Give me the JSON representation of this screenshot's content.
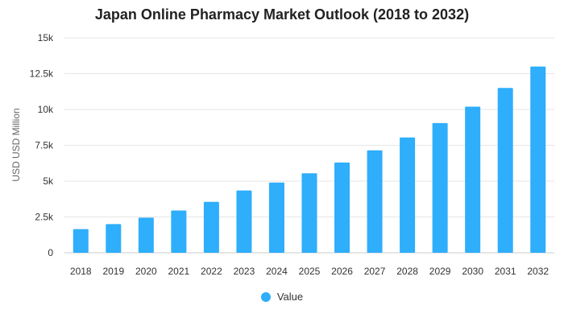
{
  "chart_data": {
    "type": "bar",
    "title": "Japan Online Pharmacy Market Outlook (2018 to 2032)",
    "ylabel": "USD USD Million",
    "xlabel": "",
    "categories": [
      "2018",
      "2019",
      "2020",
      "2021",
      "2022",
      "2023",
      "2024",
      "2025",
      "2026",
      "2027",
      "2028",
      "2029",
      "2030",
      "2031",
      "2032"
    ],
    "series": [
      {
        "name": "Value",
        "color": "#2eaefb",
        "values": [
          1650,
          2000,
          2450,
          2950,
          3550,
          4350,
          4900,
          5550,
          6300,
          7150,
          8050,
          9050,
          10200,
          11500,
          13000
        ]
      }
    ],
    "ylim": [
      0,
      15000
    ],
    "yticks": [
      0,
      2500,
      5000,
      7500,
      10000,
      12500,
      15000
    ],
    "ytick_labels": [
      "0",
      "2.5k",
      "5k",
      "7.5k",
      "10k",
      "12.5k",
      "15k"
    ],
    "grid": true,
    "legend_position": "bottom"
  }
}
